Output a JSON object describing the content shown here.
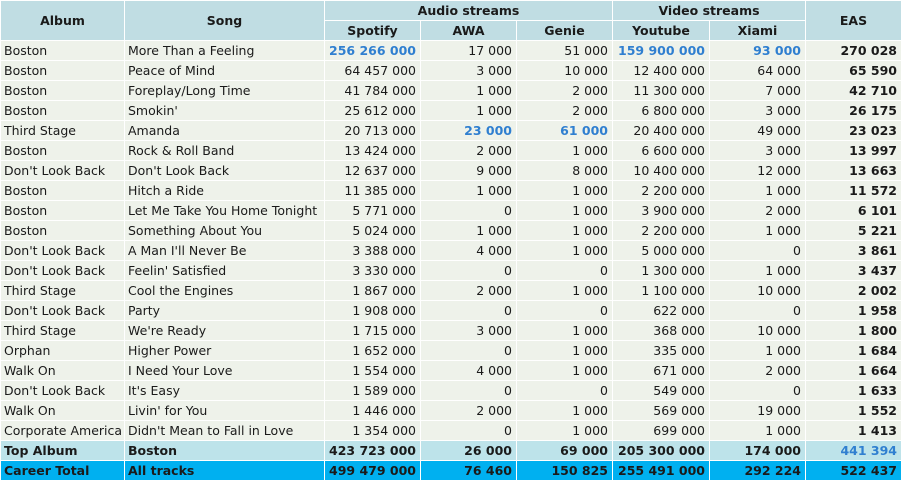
{
  "headers": {
    "album": "Album",
    "song": "Song",
    "audio": "Audio streams",
    "video": "Video streams",
    "eas": "EAS",
    "spotify": "Spotify",
    "awa": "AWA",
    "genie": "Genie",
    "youtube": "Youtube",
    "xiami": "Xiami"
  },
  "highlight_color": "#2f7fd0",
  "rows": [
    {
      "album": "Boston",
      "song": "More Than a Feeling",
      "spotify": "256 266 000",
      "awa": "17 000",
      "genie": "51 000",
      "youtube": "159 900 000",
      "xiami": "93 000",
      "eas": "270 028",
      "hi": [
        "spotify",
        "youtube",
        "xiami"
      ]
    },
    {
      "album": "Boston",
      "song": "Peace of Mind",
      "spotify": "64 457 000",
      "awa": "3 000",
      "genie": "10 000",
      "youtube": "12 400 000",
      "xiami": "64 000",
      "eas": "65 590",
      "hi": []
    },
    {
      "album": "Boston",
      "song": "Foreplay/Long Time",
      "spotify": "41 784 000",
      "awa": "1 000",
      "genie": "2 000",
      "youtube": "11 300 000",
      "xiami": "7 000",
      "eas": "42 710",
      "hi": []
    },
    {
      "album": "Boston",
      "song": "Smokin'",
      "spotify": "25 612 000",
      "awa": "1 000",
      "genie": "2 000",
      "youtube": "6 800 000",
      "xiami": "3 000",
      "eas": "26 175",
      "hi": []
    },
    {
      "album": "Third Stage",
      "song": "Amanda",
      "spotify": "20 713 000",
      "awa": "23 000",
      "genie": "61 000",
      "youtube": "20 400 000",
      "xiami": "49 000",
      "eas": "23 023",
      "hi": [
        "awa",
        "genie"
      ]
    },
    {
      "album": "Boston",
      "song": "Rock & Roll Band",
      "spotify": "13 424 000",
      "awa": "2 000",
      "genie": "1 000",
      "youtube": "6 600 000",
      "xiami": "3 000",
      "eas": "13 997",
      "hi": []
    },
    {
      "album": "Don't Look Back",
      "song": "Don't Look Back",
      "spotify": "12 637 000",
      "awa": "9 000",
      "genie": "8 000",
      "youtube": "10 400 000",
      "xiami": "12 000",
      "eas": "13 663",
      "hi": []
    },
    {
      "album": "Boston",
      "song": "Hitch a Ride",
      "spotify": "11 385 000",
      "awa": "1 000",
      "genie": "1 000",
      "youtube": "2 200 000",
      "xiami": "1 000",
      "eas": "11 572",
      "hi": []
    },
    {
      "album": "Boston",
      "song": "Let Me Take You Home Tonight",
      "spotify": "5 771 000",
      "awa": "0",
      "genie": "1 000",
      "youtube": "3 900 000",
      "xiami": "2 000",
      "eas": "6 101",
      "hi": []
    },
    {
      "album": "Boston",
      "song": "Something About You",
      "spotify": "5 024 000",
      "awa": "1 000",
      "genie": "1 000",
      "youtube": "2 200 000",
      "xiami": "1 000",
      "eas": "5 221",
      "hi": []
    },
    {
      "album": "Don't Look Back",
      "song": "A Man I'll Never Be",
      "spotify": "3 388 000",
      "awa": "4 000",
      "genie": "1 000",
      "youtube": "5 000 000",
      "xiami": "0",
      "eas": "3 861",
      "hi": []
    },
    {
      "album": "Don't Look Back",
      "song": "Feelin' Satisfied",
      "spotify": "3 330 000",
      "awa": "0",
      "genie": "0",
      "youtube": "1 300 000",
      "xiami": "1 000",
      "eas": "3 437",
      "hi": []
    },
    {
      "album": "Third Stage",
      "song": "Cool the Engines",
      "spotify": "1 867 000",
      "awa": "2 000",
      "genie": "1 000",
      "youtube": "1 100 000",
      "xiami": "10 000",
      "eas": "2 002",
      "hi": []
    },
    {
      "album": "Don't Look Back",
      "song": "Party",
      "spotify": "1 908 000",
      "awa": "0",
      "genie": "0",
      "youtube": "622 000",
      "xiami": "0",
      "eas": "1 958",
      "hi": []
    },
    {
      "album": "Third Stage",
      "song": "We're Ready",
      "spotify": "1 715 000",
      "awa": "3 000",
      "genie": "1 000",
      "youtube": "368 000",
      "xiami": "10 000",
      "eas": "1 800",
      "hi": []
    },
    {
      "album": "Orphan",
      "song": "Higher Power",
      "spotify": "1 652 000",
      "awa": "0",
      "genie": "1 000",
      "youtube": "335 000",
      "xiami": "1 000",
      "eas": "1 684",
      "hi": []
    },
    {
      "album": "Walk On",
      "song": "I Need Your Love",
      "spotify": "1 554 000",
      "awa": "4 000",
      "genie": "1 000",
      "youtube": "671 000",
      "xiami": "2 000",
      "eas": "1 664",
      "hi": []
    },
    {
      "album": "Don't Look Back",
      "song": "It's Easy",
      "spotify": "1 589 000",
      "awa": "0",
      "genie": "0",
      "youtube": "549 000",
      "xiami": "0",
      "eas": "1 633",
      "hi": []
    },
    {
      "album": "Walk On",
      "song": "Livin' for You",
      "spotify": "1 446 000",
      "awa": "2 000",
      "genie": "1 000",
      "youtube": "569 000",
      "xiami": "19 000",
      "eas": "1 552",
      "hi": []
    },
    {
      "album": "Corporate America",
      "song": "Didn't Mean to Fall in Love",
      "spotify": "1 354 000",
      "awa": "0",
      "genie": "1 000",
      "youtube": "699 000",
      "xiami": "1 000",
      "eas": "1 413",
      "hi": []
    }
  ],
  "top_album": {
    "album": "Top Album",
    "song": "Boston",
    "spotify": "423 723 000",
    "awa": "26 000",
    "genie": "69 000",
    "youtube": "205 300 000",
    "xiami": "174 000",
    "eas": "441 394",
    "hi": [
      "eas"
    ]
  },
  "career_total": {
    "album": "Career Total",
    "song": "All tracks",
    "spotify": "499 479 000",
    "awa": "76 460",
    "genie": "150 825",
    "youtube": "255 491 000",
    "xiami": "292 224",
    "eas": "522 437",
    "hi": []
  }
}
